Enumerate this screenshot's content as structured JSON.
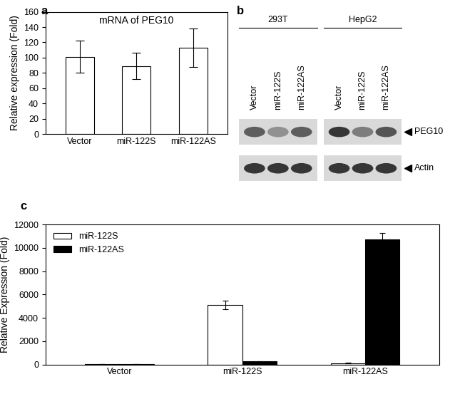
{
  "chart_data": [
    {
      "type": "bar",
      "panel": "a",
      "title": "mRNA of PEG10",
      "y_label": "Relative expression (Fold)",
      "categories": [
        "Vector",
        "miR-122S",
        "miR-122AS"
      ],
      "values": [
        101,
        89,
        113
      ],
      "errors": [
        21,
        17,
        25
      ],
      "color": "#ffffff",
      "ylim": [
        0,
        160
      ],
      "yticks": [
        0,
        20,
        40,
        60,
        80,
        100,
        120,
        140,
        160
      ]
    },
    {
      "type": "bar",
      "panel": "c",
      "y_label": "Relative Expression (Fold)",
      "categories": [
        "Vector",
        "miR-122S",
        "miR-122AS"
      ],
      "series": [
        {
          "name": "miR-122S",
          "color": "#ffffff",
          "values": [
            20,
            5100,
            100
          ],
          "errors": [
            10,
            350,
            30
          ]
        },
        {
          "name": "miR-122AS",
          "color": "#000000",
          "values": [
            20,
            250,
            10700
          ],
          "errors": [
            10,
            40,
            550
          ]
        }
      ],
      "legend": "upper left",
      "ylim": [
        0,
        12000
      ],
      "yticks": [
        0,
        2000,
        4000,
        6000,
        8000,
        10000,
        12000
      ]
    }
  ],
  "western_blot": {
    "panel": "b",
    "groups": [
      {
        "name": "293T",
        "lanes": [
          "Vector",
          "miR-122S",
          "miR-122AS"
        ]
      },
      {
        "name": "HepG2",
        "lanes": [
          "Vector",
          "miR-122S",
          "miR-122AS"
        ]
      }
    ],
    "bands": [
      {
        "name": "PEG10",
        "intensity": [
          [
            0.6,
            0.35,
            0.6
          ],
          [
            0.8,
            0.45,
            0.65
          ]
        ]
      },
      {
        "name": "Actin",
        "intensity": [
          [
            0.8,
            0.8,
            0.8
          ],
          [
            0.8,
            0.8,
            0.8
          ]
        ]
      }
    ]
  }
}
